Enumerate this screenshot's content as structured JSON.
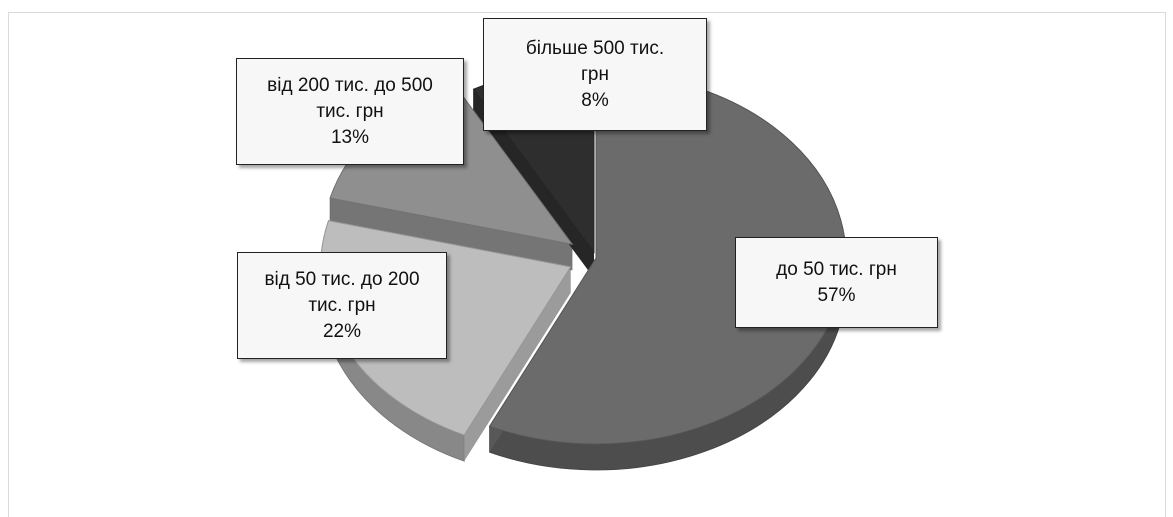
{
  "chart_data": {
    "type": "pie",
    "title": "",
    "slices": [
      {
        "label": "до 50 тис. грн",
        "label_lines": [
          "до 50 тис. грн"
        ],
        "value": 57,
        "percent_label": "57%",
        "color": "#6b6b6b"
      },
      {
        "label": "від 50 тис. до 200 тис. грн",
        "label_lines": [
          "від 50 тис. до 200",
          "тис. грн"
        ],
        "value": 22,
        "percent_label": "22%",
        "color": "#bdbdbd"
      },
      {
        "label": "від 200 тис. до 500 тис. грн",
        "label_lines": [
          "від 200 тис. до 500",
          "тис. грн"
        ],
        "value": 13,
        "percent_label": "13%",
        "color": "#8f8f8f"
      },
      {
        "label": "більше 500 тис. грн",
        "label_lines": [
          "більше 500 тис.",
          "грн"
        ],
        "value": 8,
        "percent_label": "8%",
        "color": "#2e2e2e"
      }
    ],
    "legend": "none",
    "style": "3d-exploded"
  }
}
